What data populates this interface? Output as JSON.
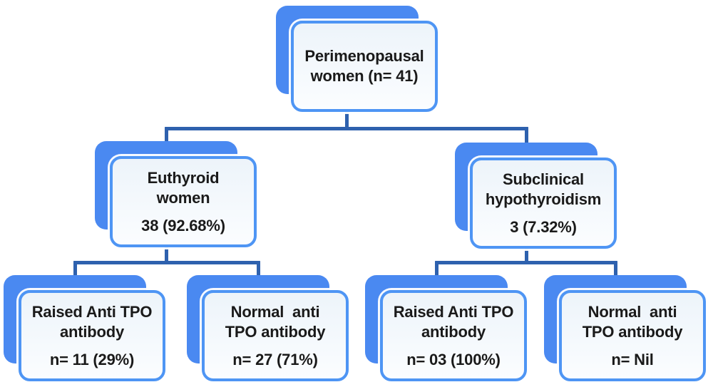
{
  "colors": {
    "shadow_blue": "#4a89f1",
    "border_blue": "#4e95f4",
    "connector_blue": "#2e61ae",
    "card_bg_top": "#edf4fa",
    "card_bg_bottom": "#fbfdff",
    "text_color": "#1a1a1a"
  },
  "nodes": {
    "root": {
      "line1": "Perimenopausal",
      "line2": "women (n= 41)"
    },
    "euthyroid": {
      "line1": "Euthyroid",
      "line2": "women",
      "value": "38 (92.68%)"
    },
    "subclinical": {
      "line1": "Subclinical",
      "line2": "hypothyroidism",
      "value": "3 (7.32%)"
    },
    "euthyroid_raised": {
      "line1": "Raised Anti TPO",
      "line2": "antibody",
      "value": "n= 11 (29%)"
    },
    "euthyroid_normal": {
      "line1": "Normal  anti",
      "line2": "TPO antibody",
      "value": "n= 27 (71%)"
    },
    "subclinical_raised": {
      "line1": "Raised Anti TPO",
      "line2": "antibody",
      "value": "n= 03 (100%)"
    },
    "subclinical_normal": {
      "line1": "Normal  anti",
      "line2": "TPO antibody",
      "value": "n= Nil"
    }
  }
}
